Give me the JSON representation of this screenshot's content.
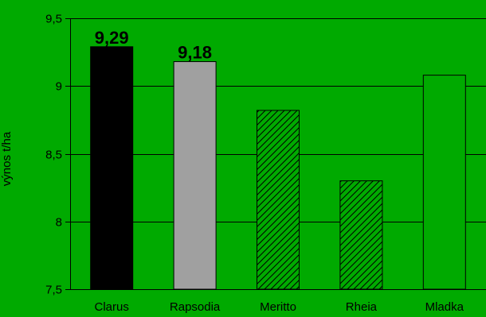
{
  "chart_data": {
    "type": "bar",
    "categories": [
      "Clarus",
      "Rapsodia",
      "Meritto",
      "Rheia",
      "Mladka"
    ],
    "values": [
      9.29,
      9.18,
      8.82,
      8.3,
      9.08
    ],
    "data_labels": [
      "9,29",
      "9,18",
      "",
      "",
      ""
    ],
    "ylabel": "výnos t/ha",
    "xlabel": "",
    "title": "",
    "ylim": [
      7.5,
      9.5
    ],
    "yticks": [
      7.5,
      8,
      8.5,
      9,
      9.5
    ],
    "ytick_labels": [
      "7,5",
      "8",
      "8,5",
      "9",
      "9,5"
    ],
    "grid": true,
    "legend": "none",
    "bar_styles": [
      {
        "fill": "solid",
        "color": "#000000"
      },
      {
        "fill": "solid",
        "color": "#a0a0a0"
      },
      {
        "fill": "hatch",
        "color": "#00aa00"
      },
      {
        "fill": "hatch",
        "color": "#00aa00"
      },
      {
        "fill": "solid",
        "color": "#00aa00"
      }
    ],
    "background_color": "#00aa00",
    "grid_color": "#000000"
  }
}
